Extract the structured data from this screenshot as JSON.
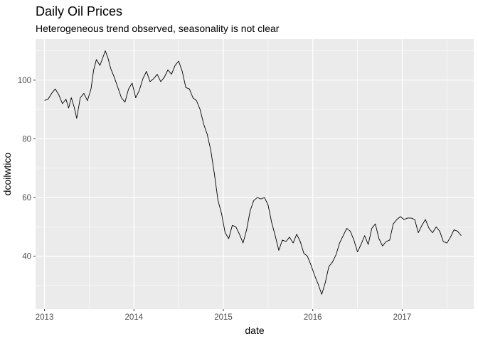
{
  "chart_data": {
    "type": "line",
    "title": "Daily Oil Prices",
    "subtitle": "Heterogeneous trend observed, seasonality is not clear",
    "xlabel": "date",
    "ylabel": "dcoilwtico",
    "xlim": [
      2012.9,
      2017.8
    ],
    "ylim": [
      22,
      114
    ],
    "x_ticks": [
      2013,
      2014,
      2015,
      2016,
      2017
    ],
    "x_tick_labels": [
      "2013",
      "2014",
      "2015",
      "2016",
      "2017"
    ],
    "y_ticks": [
      40,
      60,
      80,
      100
    ],
    "y_tick_labels": [
      "40",
      "60",
      "80",
      "100"
    ],
    "grid": true,
    "series": [
      {
        "name": "dcoilwtico",
        "color": "#000000",
        "points": [
          [
            2013.0,
            93.1
          ],
          [
            2013.04,
            93.5
          ],
          [
            2013.08,
            95.5
          ],
          [
            2013.12,
            97.0
          ],
          [
            2013.16,
            95.0
          ],
          [
            2013.2,
            92.0
          ],
          [
            2013.24,
            93.5
          ],
          [
            2013.27,
            90.5
          ],
          [
            2013.3,
            94.0
          ],
          [
            2013.33,
            91.0
          ],
          [
            2013.36,
            87.0
          ],
          [
            2013.4,
            94.0
          ],
          [
            2013.44,
            95.5
          ],
          [
            2013.48,
            93.0
          ],
          [
            2013.52,
            97.0
          ],
          [
            2013.55,
            103.5
          ],
          [
            2013.58,
            107.0
          ],
          [
            2013.62,
            105.0
          ],
          [
            2013.65,
            107.5
          ],
          [
            2013.68,
            110.0
          ],
          [
            2013.71,
            107.5
          ],
          [
            2013.74,
            104.0
          ],
          [
            2013.78,
            101.0
          ],
          [
            2013.82,
            97.5
          ],
          [
            2013.86,
            94.0
          ],
          [
            2013.9,
            92.5
          ],
          [
            2013.94,
            97.0
          ],
          [
            2013.98,
            99.0
          ],
          [
            2014.02,
            94.0
          ],
          [
            2014.06,
            96.5
          ],
          [
            2014.1,
            100.5
          ],
          [
            2014.14,
            103.0
          ],
          [
            2014.18,
            99.5
          ],
          [
            2014.22,
            100.5
          ],
          [
            2014.26,
            102.0
          ],
          [
            2014.3,
            99.5
          ],
          [
            2014.34,
            101.0
          ],
          [
            2014.38,
            103.5
          ],
          [
            2014.42,
            102.0
          ],
          [
            2014.46,
            105.0
          ],
          [
            2014.5,
            106.5
          ],
          [
            2014.54,
            103.0
          ],
          [
            2014.58,
            97.5
          ],
          [
            2014.62,
            97.0
          ],
          [
            2014.66,
            94.0
          ],
          [
            2014.7,
            93.0
          ],
          [
            2014.74,
            90.0
          ],
          [
            2014.78,
            85.0
          ],
          [
            2014.82,
            81.5
          ],
          [
            2014.86,
            76.0
          ],
          [
            2014.9,
            68.0
          ],
          [
            2014.94,
            59.0
          ],
          [
            2014.98,
            54.5
          ],
          [
            2015.02,
            48.0
          ],
          [
            2015.06,
            46.0
          ],
          [
            2015.1,
            50.5
          ],
          [
            2015.14,
            50.0
          ],
          [
            2015.18,
            47.5
          ],
          [
            2015.22,
            44.5
          ],
          [
            2015.26,
            49.0
          ],
          [
            2015.3,
            55.5
          ],
          [
            2015.34,
            59.0
          ],
          [
            2015.38,
            60.0
          ],
          [
            2015.42,
            59.5
          ],
          [
            2015.46,
            60.0
          ],
          [
            2015.5,
            57.5
          ],
          [
            2015.54,
            51.5
          ],
          [
            2015.58,
            47.0
          ],
          [
            2015.62,
            42.0
          ],
          [
            2015.66,
            45.5
          ],
          [
            2015.7,
            45.0
          ],
          [
            2015.74,
            46.5
          ],
          [
            2015.78,
            44.5
          ],
          [
            2015.82,
            47.5
          ],
          [
            2015.86,
            45.0
          ],
          [
            2015.9,
            41.0
          ],
          [
            2015.94,
            40.0
          ],
          [
            2015.98,
            37.0
          ],
          [
            2016.02,
            33.5
          ],
          [
            2016.06,
            30.5
          ],
          [
            2016.1,
            27.0
          ],
          [
            2016.14,
            31.0
          ],
          [
            2016.18,
            36.5
          ],
          [
            2016.22,
            38.0
          ],
          [
            2016.26,
            40.5
          ],
          [
            2016.3,
            44.5
          ],
          [
            2016.34,
            47.0
          ],
          [
            2016.38,
            49.5
          ],
          [
            2016.42,
            48.5
          ],
          [
            2016.46,
            45.5
          ],
          [
            2016.5,
            41.5
          ],
          [
            2016.54,
            44.0
          ],
          [
            2016.58,
            47.0
          ],
          [
            2016.62,
            44.0
          ],
          [
            2016.66,
            49.5
          ],
          [
            2016.7,
            51.0
          ],
          [
            2016.74,
            46.0
          ],
          [
            2016.78,
            43.5
          ],
          [
            2016.82,
            45.0
          ],
          [
            2016.86,
            45.5
          ],
          [
            2016.9,
            51.0
          ],
          [
            2016.94,
            52.5
          ],
          [
            2016.98,
            53.5
          ],
          [
            2017.02,
            52.5
          ],
          [
            2017.06,
            53.0
          ],
          [
            2017.1,
            53.0
          ],
          [
            2017.14,
            52.5
          ],
          [
            2017.18,
            48.0
          ],
          [
            2017.22,
            50.5
          ],
          [
            2017.26,
            52.5
          ],
          [
            2017.3,
            49.5
          ],
          [
            2017.34,
            48.0
          ],
          [
            2017.38,
            50.0
          ],
          [
            2017.42,
            48.5
          ],
          [
            2017.46,
            45.0
          ],
          [
            2017.5,
            44.5
          ],
          [
            2017.54,
            46.5
          ],
          [
            2017.58,
            49.0
          ],
          [
            2017.62,
            48.5
          ],
          [
            2017.66,
            47.0
          ]
        ]
      }
    ]
  }
}
